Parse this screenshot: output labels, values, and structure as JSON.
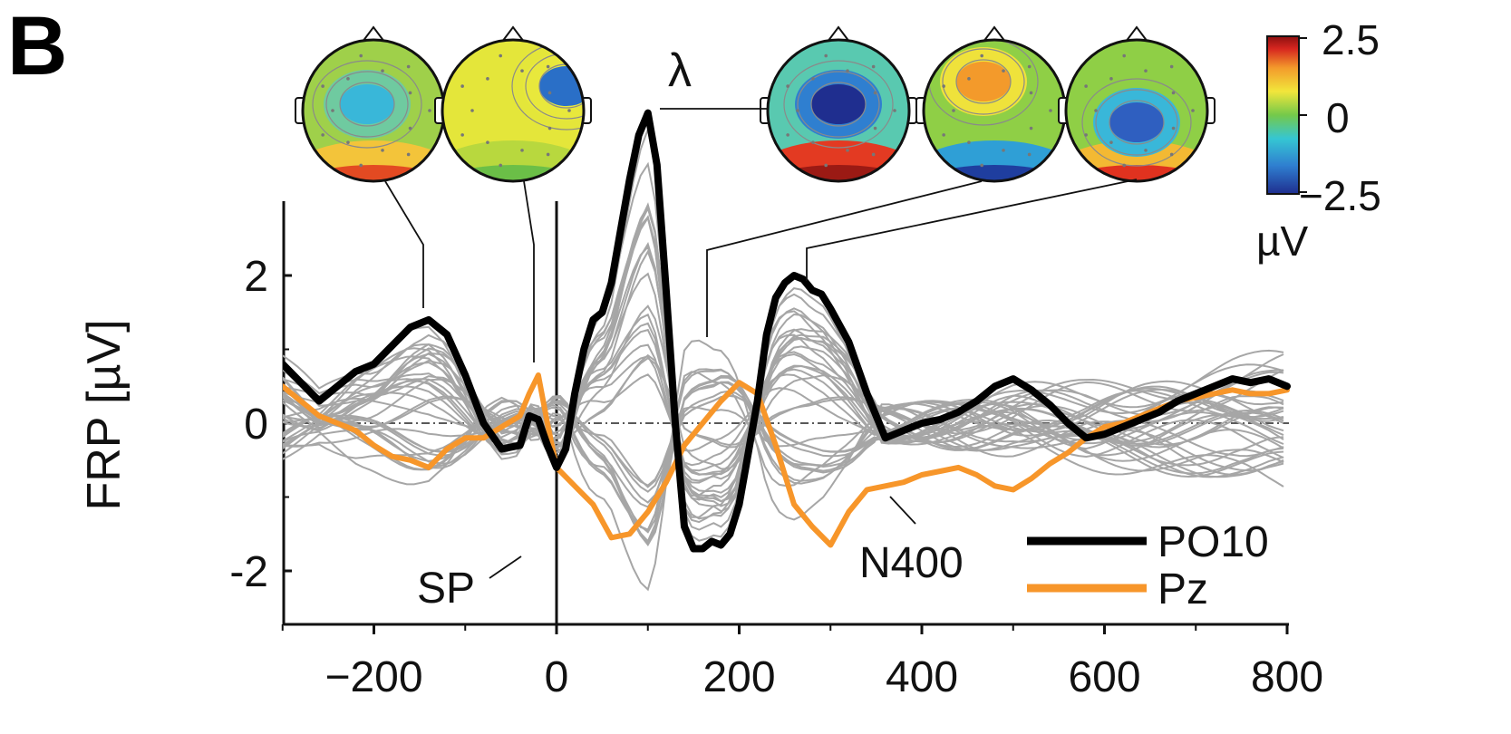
{
  "panel_label": "B",
  "chart_data": {
    "type": "line",
    "ylabel": "FRP [µV]",
    "xlabel": "",
    "xlim": [
      -300,
      800
    ],
    "ylim": [
      -2.8,
      3.0
    ],
    "x_ticks": [
      -200,
      0,
      200,
      400,
      600,
      800
    ],
    "x_tick_labels": [
      "−200",
      "0",
      "200",
      "400",
      "600",
      "800"
    ],
    "y_ticks": [
      2,
      0,
      -2
    ],
    "y_tick_labels": [
      "2",
      "0",
      "-2"
    ],
    "zero_line": "dash-dot at y=0",
    "vertical_line_at_x": 0,
    "grid": false,
    "legend_position": "bottom-right",
    "series": [
      {
        "name": "PO10",
        "color": "#000000",
        "x": [
          -300,
          -280,
          -260,
          -240,
          -220,
          -200,
          -180,
          -160,
          -140,
          -120,
          -100,
          -80,
          -60,
          -40,
          -30,
          -20,
          -10,
          0,
          10,
          20,
          30,
          40,
          50,
          60,
          70,
          80,
          90,
          100,
          110,
          120,
          130,
          140,
          150,
          160,
          170,
          180,
          190,
          200,
          210,
          220,
          230,
          240,
          250,
          260,
          270,
          280,
          290,
          300,
          320,
          340,
          360,
          380,
          400,
          420,
          440,
          460,
          480,
          500,
          520,
          540,
          560,
          580,
          600,
          620,
          640,
          660,
          680,
          700,
          720,
          740,
          760,
          780,
          800
        ],
        "y": [
          0.8,
          0.55,
          0.3,
          0.5,
          0.7,
          0.8,
          1.05,
          1.3,
          1.4,
          1.2,
          0.65,
          0.0,
          -0.35,
          -0.3,
          0.1,
          0.05,
          -0.3,
          -0.6,
          -0.35,
          0.4,
          1.0,
          1.4,
          1.5,
          1.9,
          2.6,
          3.3,
          3.9,
          4.2,
          3.5,
          1.8,
          0.0,
          -1.4,
          -1.7,
          -1.7,
          -1.6,
          -1.65,
          -1.5,
          -1.1,
          -0.4,
          0.3,
          1.2,
          1.7,
          1.9,
          2.0,
          1.95,
          1.8,
          1.75,
          1.55,
          1.1,
          0.4,
          -0.2,
          -0.1,
          0.0,
          0.05,
          0.15,
          0.3,
          0.5,
          0.6,
          0.45,
          0.25,
          0.0,
          -0.2,
          -0.15,
          -0.05,
          0.05,
          0.15,
          0.3,
          0.4,
          0.5,
          0.6,
          0.55,
          0.6,
          0.5
        ]
      },
      {
        "name": "Pz",
        "color": "#f7962a",
        "x": [
          -300,
          -280,
          -260,
          -240,
          -220,
          -200,
          -180,
          -160,
          -140,
          -120,
          -100,
          -80,
          -60,
          -40,
          -30,
          -20,
          -10,
          0,
          20,
          40,
          60,
          80,
          100,
          120,
          140,
          160,
          180,
          200,
          220,
          240,
          260,
          280,
          300,
          320,
          340,
          360,
          380,
          400,
          420,
          440,
          460,
          480,
          500,
          520,
          540,
          560,
          580,
          600,
          620,
          640,
          660,
          680,
          700,
          720,
          740,
          760,
          780,
          800
        ],
        "y": [
          0.5,
          0.3,
          0.1,
          0.0,
          -0.1,
          -0.3,
          -0.45,
          -0.5,
          -0.6,
          -0.35,
          -0.2,
          -0.2,
          -0.05,
          0.1,
          0.4,
          0.65,
          0.0,
          -0.6,
          -0.85,
          -1.1,
          -1.55,
          -1.5,
          -1.2,
          -0.8,
          -0.3,
          0.0,
          0.3,
          0.55,
          0.4,
          -0.3,
          -1.1,
          -1.4,
          -1.65,
          -1.2,
          -0.9,
          -0.85,
          -0.8,
          -0.7,
          -0.65,
          -0.6,
          -0.7,
          -0.85,
          -0.9,
          -0.75,
          -0.55,
          -0.4,
          -0.2,
          -0.05,
          0.0,
          0.1,
          0.2,
          0.3,
          0.35,
          0.4,
          0.45,
          0.4,
          0.4,
          0.45
        ]
      }
    ],
    "background_traces": "gray traces of all other electrodes",
    "annotations": [
      {
        "text": "λ",
        "x": 100
      },
      {
        "text": "SP",
        "x": -25
      },
      {
        "text": "N400",
        "x": 370
      }
    ]
  },
  "topomaps": {
    "times_ms": [
      -145,
      -25,
      100,
      160,
      275
    ],
    "colorbar": {
      "max_label": "2.5",
      "mid_label": "0",
      "min_label": "−2.5",
      "unit": "µV",
      "colors": [
        "#1f2e8f",
        "#2f7fd0",
        "#35c6d3",
        "#74c94a",
        "#f2e63b",
        "#f39a2b",
        "#d7261f",
        "#8c1010"
      ]
    }
  }
}
